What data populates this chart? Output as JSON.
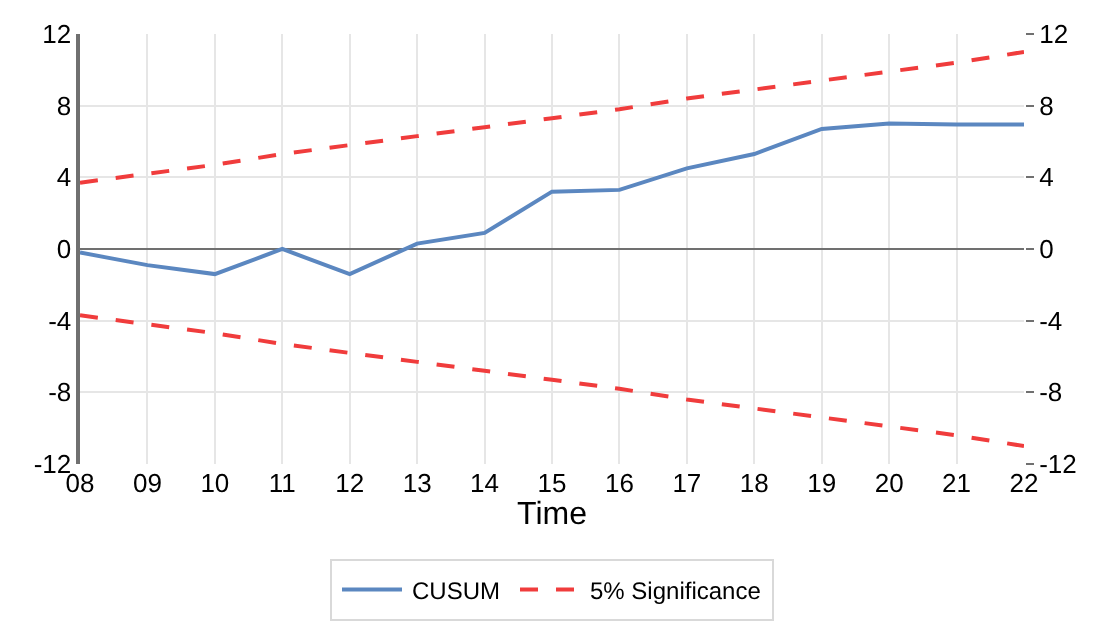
{
  "chart_data": {
    "type": "line",
    "xlabel": "Time",
    "categories": [
      "08",
      "09",
      "10",
      "11",
      "12",
      "13",
      "14",
      "15",
      "16",
      "17",
      "18",
      "19",
      "20",
      "21",
      "22"
    ],
    "series": [
      {
        "name": "CUSUM",
        "color": "#5b87c0",
        "line_style": "solid",
        "values": [
          -0.2,
          -0.9,
          -1.4,
          0.0,
          -1.4,
          0.3,
          0.9,
          3.2,
          3.3,
          4.5,
          5.3,
          6.7,
          7.0,
          6.95,
          6.95
        ]
      },
      {
        "name": "5% Significance",
        "color": "#f03c3c",
        "line_style": "dashed",
        "values": [
          3.7,
          4.2,
          4.7,
          5.3,
          5.8,
          6.3,
          6.8,
          7.3,
          7.8,
          8.4,
          8.9,
          9.4,
          9.9,
          10.4,
          11.0
        ]
      },
      {
        "color": "#f03c3c",
        "line_style": "dashed",
        "values": [
          -3.7,
          -4.2,
          -4.7,
          -5.3,
          -5.8,
          -6.3,
          -6.8,
          -7.3,
          -7.8,
          -8.4,
          -8.9,
          -9.4,
          -9.9,
          -10.4,
          -11.0
        ]
      }
    ],
    "ylim": [
      -12,
      12
    ],
    "yticks": [
      -12,
      -8,
      -4,
      0,
      4,
      8,
      12
    ],
    "y2lim": [
      -12,
      12
    ],
    "y2ticks": [
      -12,
      -8,
      -4,
      0,
      4,
      8,
      12
    ],
    "grid": true,
    "legend": "bottom",
    "marker": "none"
  }
}
